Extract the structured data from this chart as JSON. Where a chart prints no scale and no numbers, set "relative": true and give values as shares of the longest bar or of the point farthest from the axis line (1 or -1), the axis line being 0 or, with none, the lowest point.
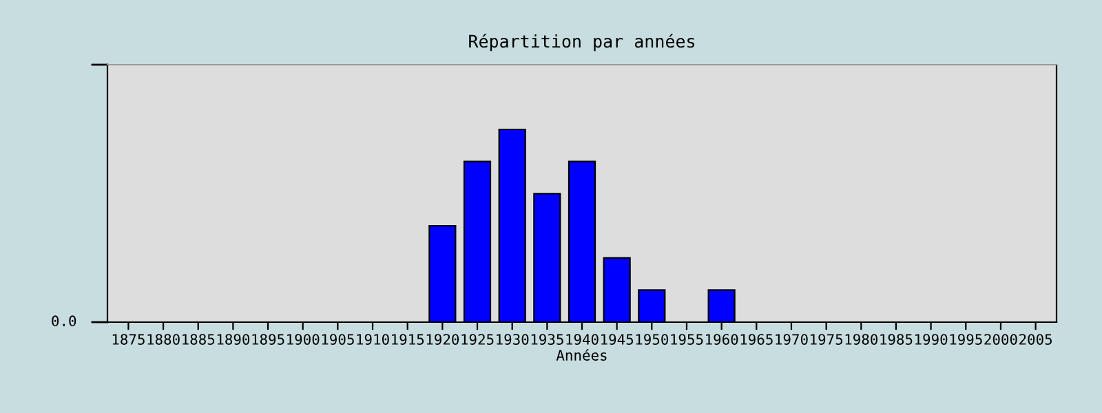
{
  "chart_data": {
    "type": "bar",
    "title": "Répartition par années",
    "xlabel": "Années",
    "categories": [
      "1875",
      "1880",
      "1885",
      "1890",
      "1895",
      "1900",
      "1905",
      "1910",
      "1915",
      "1920",
      "1925",
      "1930",
      "1935",
      "1940",
      "1945",
      "1950",
      "1955",
      "1960",
      "1965",
      "1970",
      "1975",
      "1980",
      "1985",
      "1990",
      "1995",
      "2000",
      "2005"
    ],
    "values": [
      0,
      0,
      0,
      0,
      0,
      0,
      0,
      0,
      0,
      0.5,
      0.8333,
      1,
      0.6667,
      0.8333,
      0.3333,
      0.1667,
      0,
      0.1667,
      0,
      0,
      0,
      0,
      0,
      0,
      0,
      0,
      0
    ],
    "color": "#0000ff",
    "relative": true,
    "annotations": [
      "0.0"
    ],
    "grid": false
  }
}
